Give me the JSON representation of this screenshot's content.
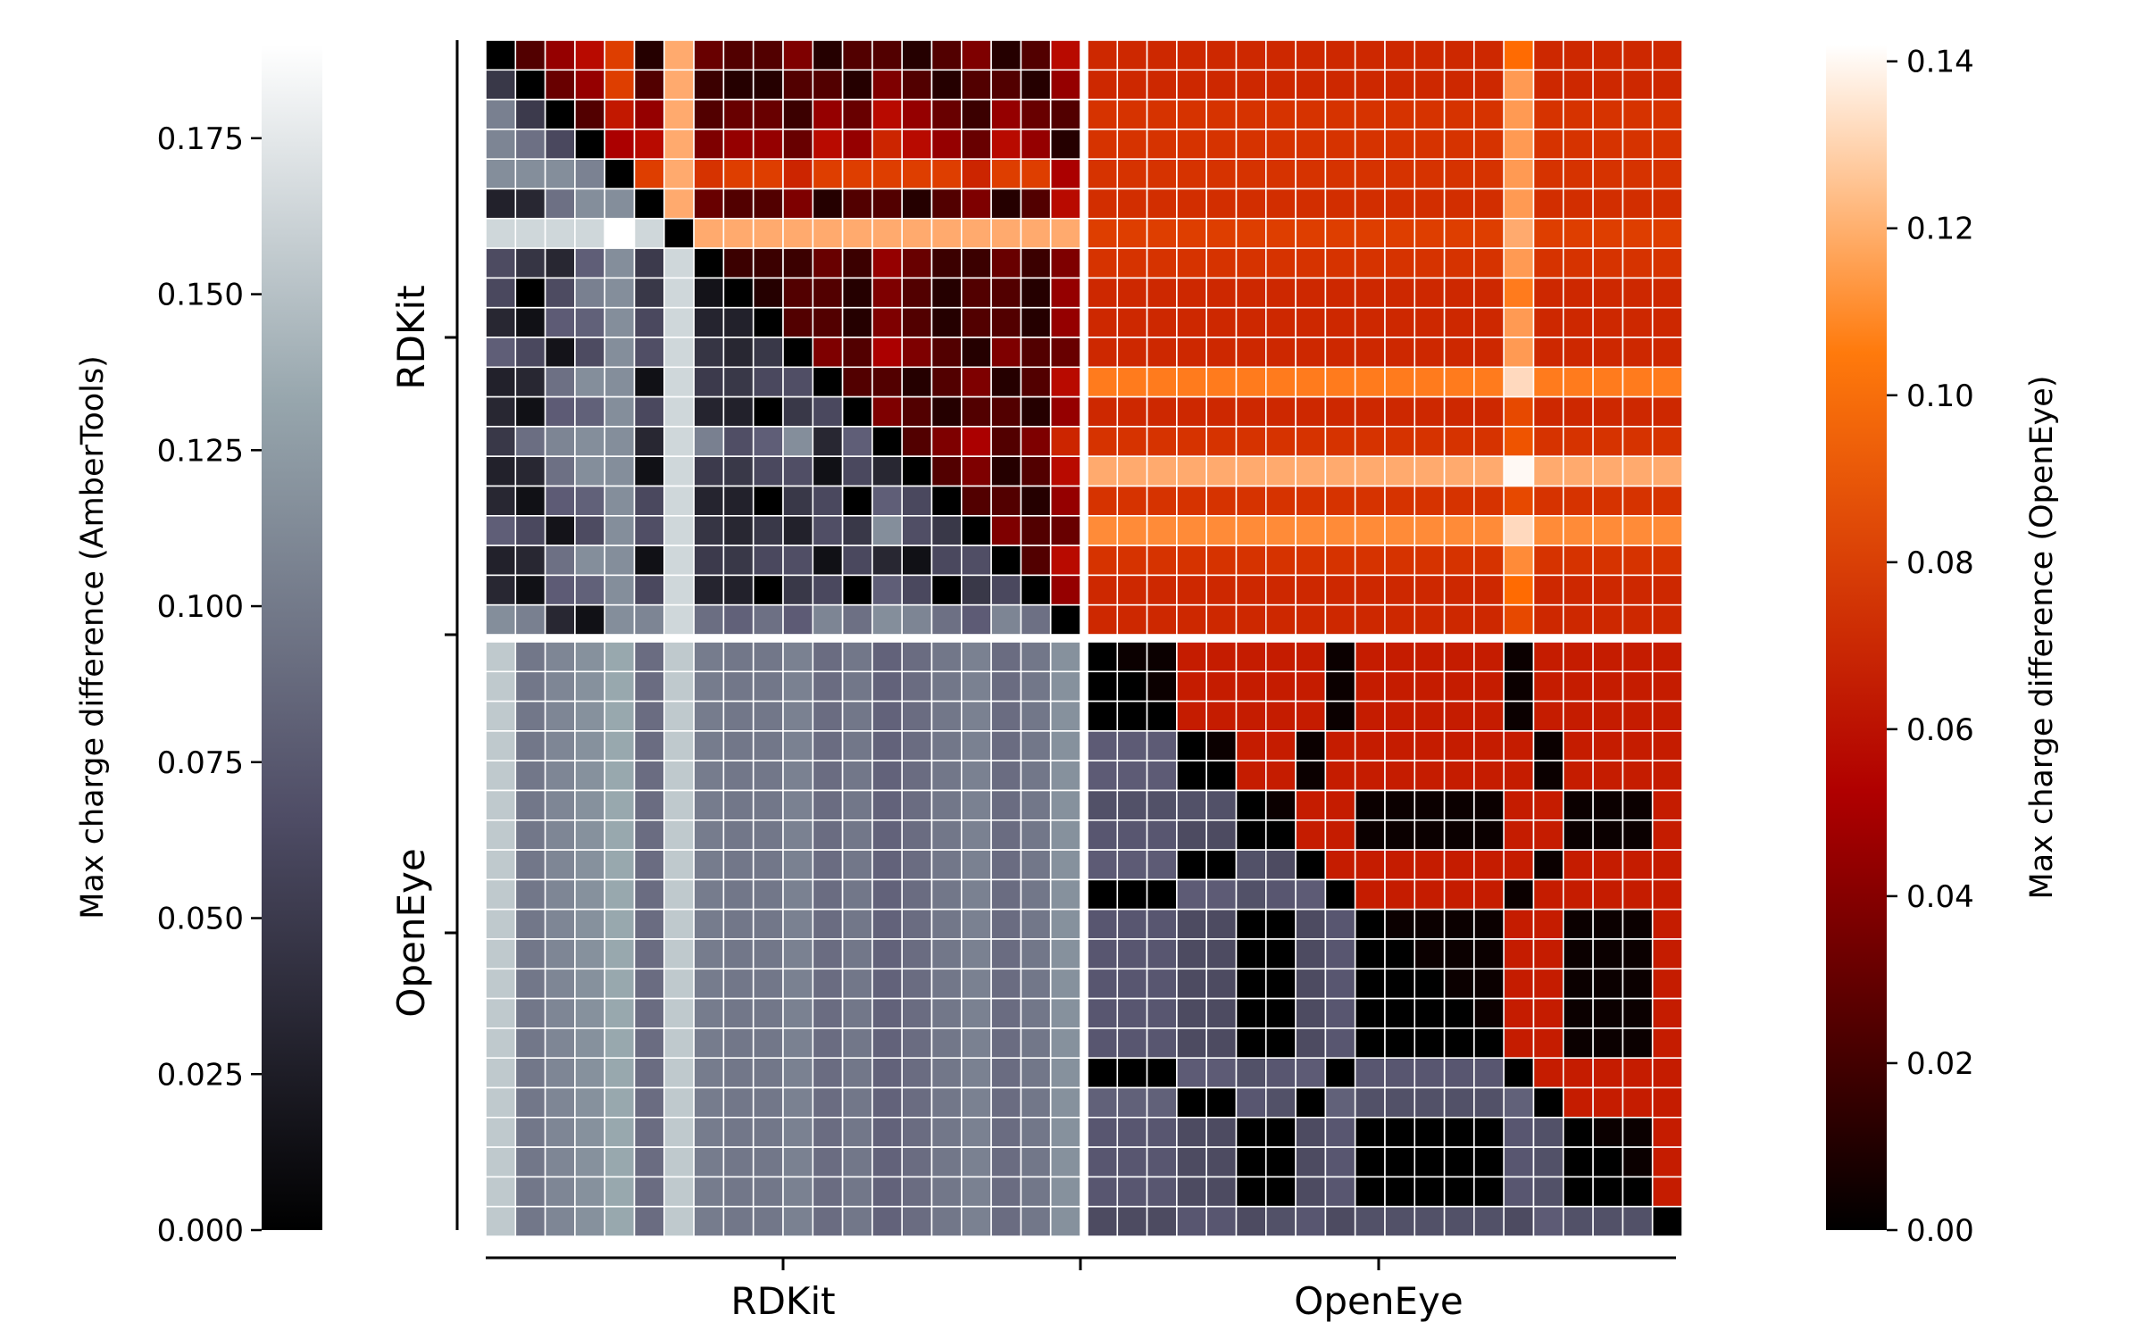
{
  "chart_data": {
    "type": "heatmap",
    "title": "",
    "groups": [
      "RDKit",
      "OpenEye"
    ],
    "group_sizes": [
      20,
      20
    ],
    "xlabel_ticks": [
      "RDKit",
      "OpenEye"
    ],
    "ylabel_ticks": [
      "RDKit",
      "OpenEye"
    ],
    "lower_colorbar": {
      "label": "Max charge difference (AmberTools)",
      "range": [
        0.0,
        0.19
      ],
      "ticks": [
        0.0,
        0.025,
        0.05,
        0.075,
        0.1,
        0.125,
        0.15,
        0.175
      ],
      "tick_labels": [
        "0.000",
        "0.025",
        "0.050",
        "0.075",
        "0.100",
        "0.125",
        "0.150",
        "0.175"
      ],
      "colors": [
        "#000000",
        "#5a5872",
        "#9aaab0",
        "#ffffff"
      ]
    },
    "upper_colorbar": {
      "label": "Max charge difference (OpenEye)",
      "range": [
        0.0,
        0.142
      ],
      "ticks": [
        0.0,
        0.02,
        0.04,
        0.06,
        0.08,
        0.1,
        0.12,
        0.14
      ],
      "tick_labels": [
        "0.00",
        "0.02",
        "0.04",
        "0.06",
        "0.08",
        "0.10",
        "0.12",
        "0.14"
      ],
      "colors": [
        "#000000",
        "#b00000",
        "#ff6a00",
        "#ffffff"
      ]
    },
    "rdkit_group_value_by_conformer": [
      0.06,
      0.08,
      0.11,
      0.13,
      0.19,
      0.06,
      0.08,
      0.09,
      0.08,
      0.08,
      0.1,
      0.06,
      0.08,
      0.04,
      0.06,
      0.08,
      0.1,
      0.06,
      0.08,
      0.13
    ],
    "openeye_group_value_by_conformer": [
      0.03,
      0.03,
      0.03,
      0.07,
      0.07,
      0.05,
      0.06,
      0.07,
      0.03,
      0.06,
      0.06,
      0.06,
      0.06,
      0.06,
      0.03,
      0.08,
      0.06,
      0.06,
      0.06,
      0.04
    ],
    "openeye_cross_row_values": [
      0.065,
      0.065,
      0.07,
      0.07,
      0.07,
      0.068,
      0.075,
      0.07,
      0.065,
      0.065,
      0.065,
      0.1,
      0.065,
      0.07,
      0.115,
      0.07,
      0.105,
      0.07,
      0.065,
      0.065
    ],
    "openeye_cross_column_17_values": [
      0.095,
      0.11,
      0.11,
      0.11,
      0.11,
      0.11,
      0.115,
      0.11,
      0.1,
      0.11,
      0.11,
      0.13,
      0.08,
      0.085,
      0.14,
      0.08,
      0.13,
      0.105,
      0.095,
      0.08
    ],
    "within_block_note_value": 0.0
  }
}
